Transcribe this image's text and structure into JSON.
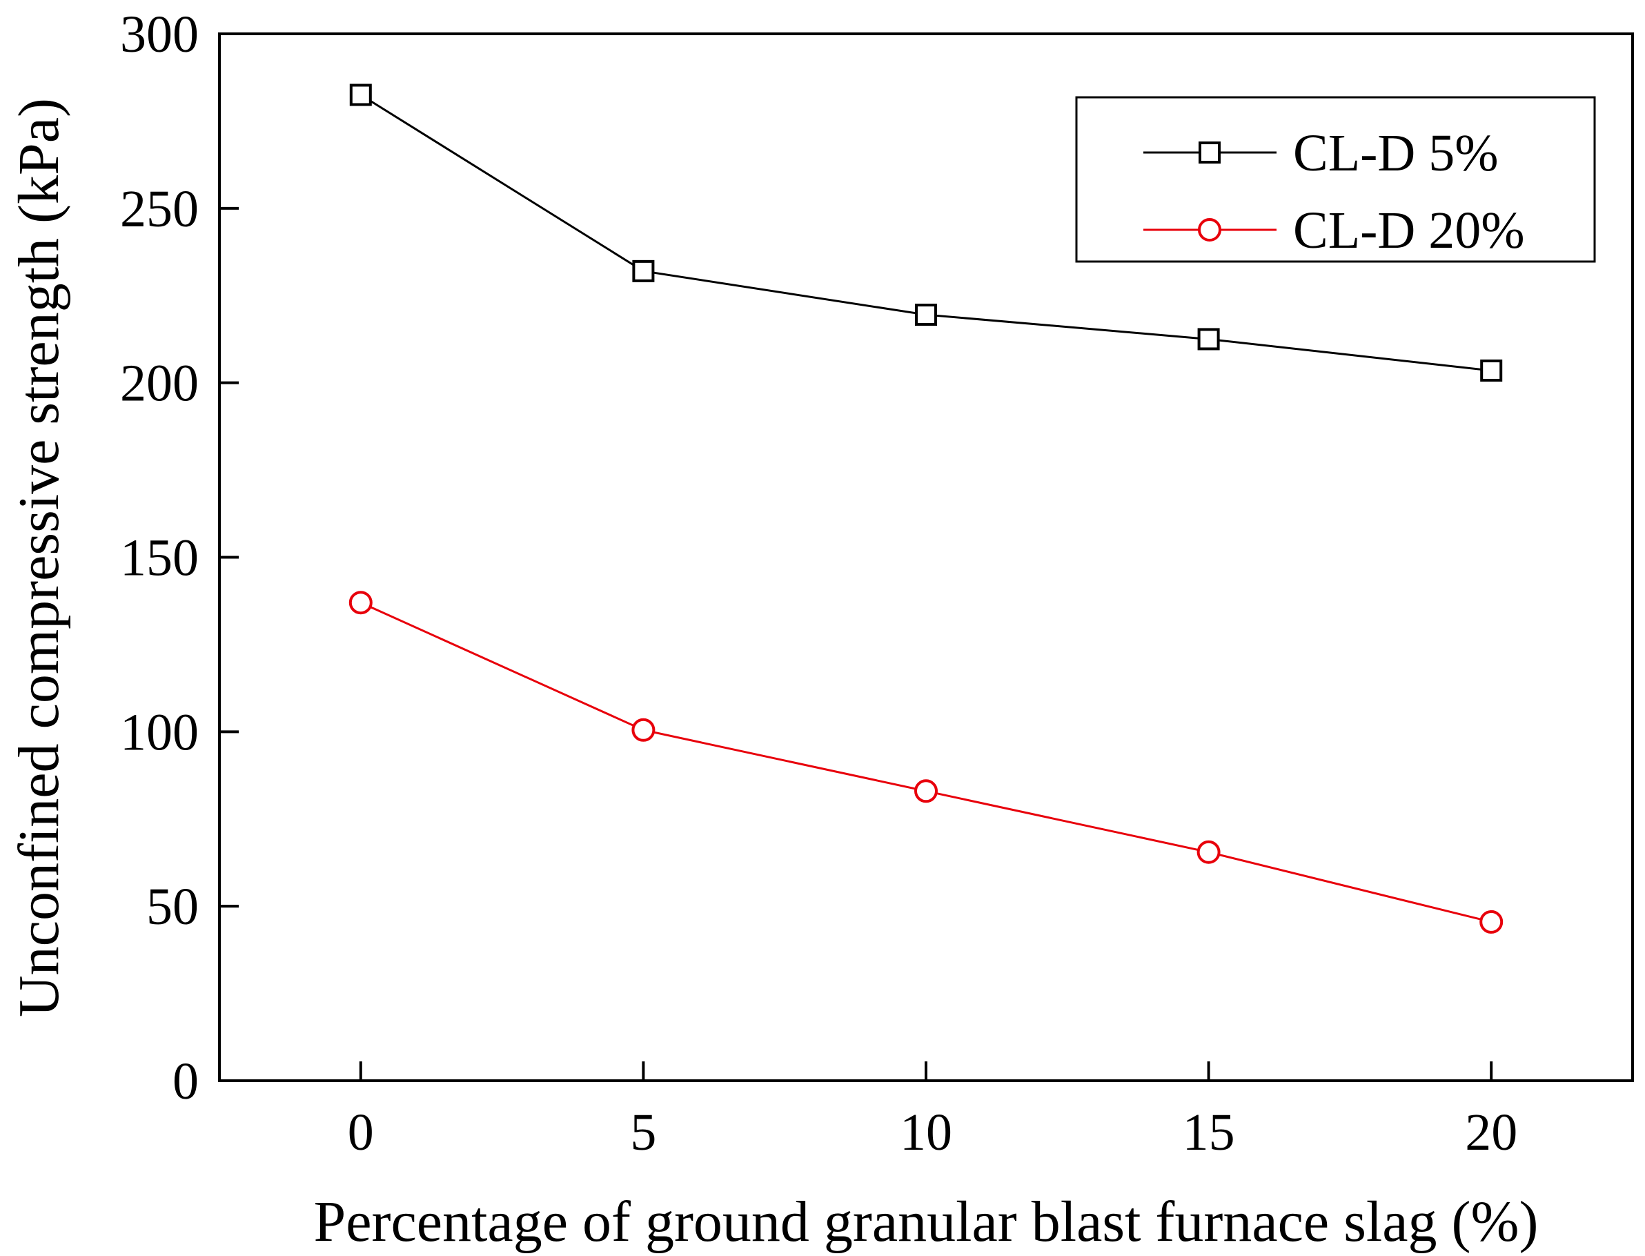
{
  "chart_data": {
    "type": "line",
    "xlabel": "Percentage of ground granular blast furnace slag (%)",
    "ylabel": "Unconfined compressive strength (kPa)",
    "x": [
      0,
      5,
      10,
      15,
      20
    ],
    "x_tick_labels": [
      "0",
      "5",
      "10",
      "15",
      "20"
    ],
    "y_tick_labels": [
      "0",
      "50",
      "100",
      "150",
      "200",
      "250",
      "300"
    ],
    "xlim": [
      -2.5,
      22.5
    ],
    "ylim": [
      0,
      300
    ],
    "grid": false,
    "legend_position": "top-right",
    "series": [
      {
        "name": "CL-D 5%",
        "values": [
          282.5,
          232.0,
          219.5,
          212.5,
          203.5
        ],
        "color": "#000000",
        "marker": "square"
      },
      {
        "name": "CL-D 20%",
        "values": [
          137.0,
          100.5,
          83.0,
          65.5,
          45.5
        ],
        "color": "#e8000b",
        "marker": "circle"
      }
    ]
  }
}
